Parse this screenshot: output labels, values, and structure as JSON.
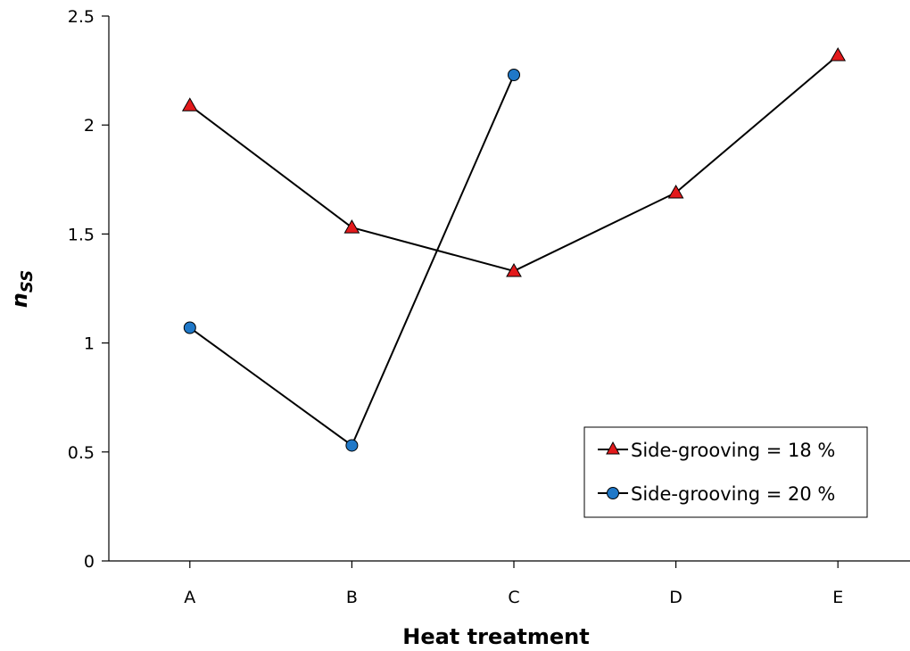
{
  "chart_data": {
    "type": "line",
    "title": "",
    "xlabel": "Heat treatment",
    "ylabel_main": "n",
    "ylabel_sub": "SS",
    "categories": [
      "A",
      "B",
      "C",
      "D",
      "E"
    ],
    "ylim": [
      0,
      2.5
    ],
    "yticks": [
      0,
      0.5,
      1,
      1.5,
      2,
      2.5
    ],
    "ytick_labels": [
      "0",
      "0.5",
      "1",
      "1.5",
      "2",
      "2.5"
    ],
    "grid": false,
    "legend_position": "bottom-right",
    "series": [
      {
        "name": "Side-grooving = 18 %",
        "marker": "triangle",
        "color": "#e31a1c",
        "values": [
          2.09,
          1.53,
          1.33,
          1.69,
          2.32
        ]
      },
      {
        "name": "Side-grooving = 20 %",
        "marker": "circle",
        "color": "#1f78c8",
        "values": [
          1.07,
          0.53,
          2.23,
          null,
          null
        ]
      }
    ]
  }
}
